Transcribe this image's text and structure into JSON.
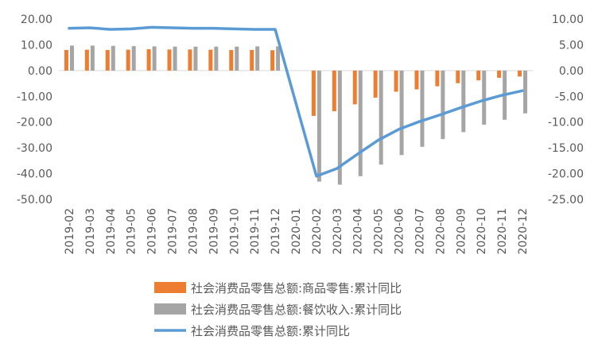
{
  "chart_data": {
    "type": "bar",
    "categories": [
      "2019-02",
      "2019-03",
      "2019-04",
      "2019-05",
      "2019-06",
      "2019-07",
      "2019-08",
      "2019-09",
      "2019-10",
      "2019-11",
      "2019-12",
      "2020-01",
      "2020-02",
      "2020-03",
      "2020-04",
      "2020-05",
      "2020-06",
      "2020-07",
      "2020-08",
      "2020-09",
      "2020-10",
      "2020-11",
      "2020-12"
    ],
    "y_left": {
      "range": [
        -50,
        20
      ],
      "ticks": [
        "20.00",
        "10.00",
        "0.00",
        "-10.00",
        "-20.00",
        "-30.00",
        "-40.00",
        "-50.00"
      ],
      "tick_values": [
        20,
        10,
        0,
        -10,
        -20,
        -30,
        -40,
        -50
      ]
    },
    "y_right": {
      "range": [
        -25,
        10
      ],
      "ticks": [
        "10.00",
        "5.00",
        "0.00",
        "-5.00",
        "-10.00",
        "-15.00",
        "-20.00",
        "-25.00"
      ],
      "tick_values": [
        10,
        5,
        0,
        -5,
        -10,
        -15,
        -20,
        -25
      ]
    },
    "series": [
      {
        "name": "社会消费品零售总额:商品零售:累计同比",
        "kind": "bar",
        "axis": "left",
        "color": "#ED7D31",
        "values": [
          8.0,
          8.1,
          8.0,
          8.1,
          8.3,
          8.2,
          8.2,
          8.1,
          8.0,
          8.0,
          7.9,
          null,
          -17.6,
          -15.8,
          -13.1,
          -10.5,
          -8.2,
          -7.3,
          -6.1,
          -4.9,
          -3.8,
          -2.8,
          -2.3
        ]
      },
      {
        "name": "社会消费品零售总额:餐饮收入:累计同比",
        "kind": "bar",
        "axis": "left",
        "color": "#A5A5A5",
        "values": [
          9.7,
          9.7,
          9.6,
          9.5,
          9.4,
          9.3,
          9.3,
          9.3,
          9.3,
          9.4,
          9.4,
          null,
          -43.1,
          -44.3,
          -41.0,
          -36.5,
          -32.8,
          -29.6,
          -26.6,
          -23.9,
          -21.0,
          -19.1,
          -16.6
        ]
      },
      {
        "name": "社会消费品零售总额:累计同比",
        "kind": "line",
        "axis": "right",
        "color": "#5B9BD5",
        "values": [
          8.2,
          8.3,
          8.0,
          8.1,
          8.4,
          8.3,
          8.2,
          8.2,
          8.1,
          8.0,
          8.0,
          null,
          -20.5,
          -19.0,
          -16.2,
          -13.5,
          -11.4,
          -9.9,
          -8.6,
          -7.2,
          -5.9,
          -4.8,
          -3.9
        ]
      }
    ],
    "legend_position": "bottom",
    "grid": false
  }
}
